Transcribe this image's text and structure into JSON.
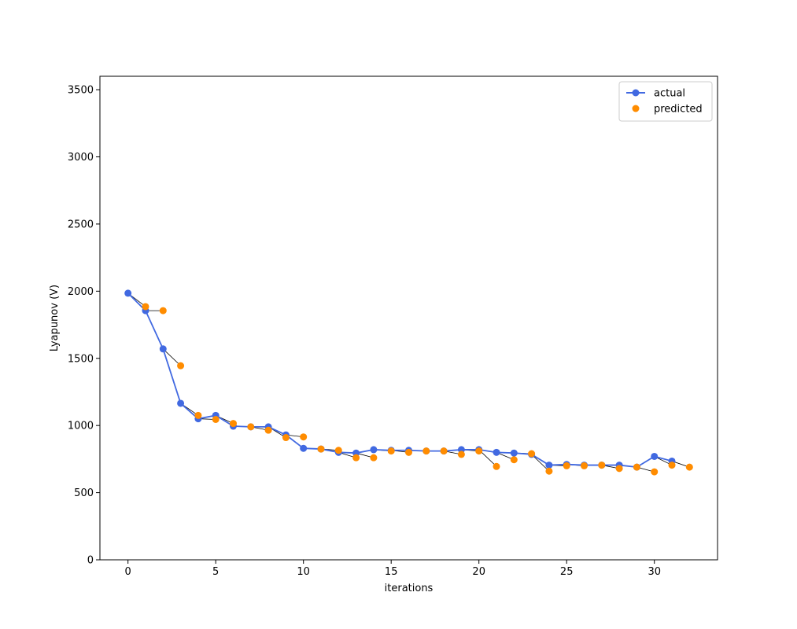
{
  "chart_data": {
    "type": "line",
    "title": "",
    "xlabel": "iterations",
    "ylabel": "Lyapunov (V)",
    "xlim": [
      -1.6,
      33.6
    ],
    "ylim": [
      0,
      3600
    ],
    "xticks": [
      0,
      5,
      10,
      15,
      20,
      25,
      30
    ],
    "yticks": [
      0,
      500,
      1000,
      1500,
      2000,
      2500,
      3000,
      3500
    ],
    "grid": false,
    "legend_position": "top-right",
    "series": [
      {
        "name": "actual",
        "kind": "line-marker",
        "color": "#4169e1",
        "x": [
          0,
          1,
          2,
          3,
          4,
          5,
          6,
          7,
          8,
          9,
          10,
          11,
          12,
          13,
          14,
          15,
          16,
          17,
          18,
          19,
          20,
          21,
          22,
          23,
          24,
          25,
          26,
          27,
          28,
          29,
          30,
          31
        ],
        "values": [
          1985,
          1855,
          1570,
          1165,
          1050,
          1075,
          995,
          990,
          990,
          930,
          830,
          825,
          800,
          795,
          820,
          815,
          815,
          810,
          810,
          820,
          820,
          800,
          795,
          785,
          705,
          710,
          705,
          705,
          705,
          690,
          770,
          735
        ]
      },
      {
        "name": "predicted",
        "kind": "scatter",
        "color": "#ff8c00",
        "x": [
          1,
          2,
          3,
          4,
          5,
          6,
          7,
          8,
          9,
          10,
          11,
          12,
          13,
          14,
          15,
          16,
          17,
          18,
          19,
          20,
          21,
          22,
          23,
          24,
          25,
          26,
          27,
          28,
          29,
          30,
          31,
          32
        ],
        "values": [
          1885,
          1855,
          1445,
          1075,
          1045,
          1015,
          990,
          965,
          910,
          915,
          825,
          815,
          760,
          760,
          810,
          800,
          810,
          810,
          785,
          810,
          695,
          745,
          790,
          660,
          700,
          700,
          705,
          680,
          690,
          655,
          705,
          690
        ]
      }
    ]
  }
}
